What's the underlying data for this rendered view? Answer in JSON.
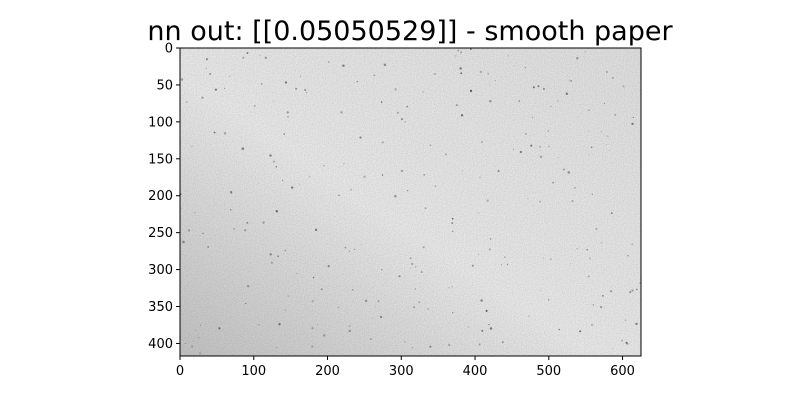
{
  "chart_data": {
    "type": "heatmap",
    "title": "nn out: [[0.05050529]] - smooth paper",
    "xlabel": "",
    "ylabel": "",
    "image_width": 625,
    "image_height": 417,
    "xlim": [
      0,
      625
    ],
    "ylim": [
      417,
      0
    ],
    "y_inverted": true,
    "colormap": "gray",
    "content": "grayscale texture of smooth paper, light gray with fine darker speckles, slightly darker toward the bottom-left",
    "x_ticks": [
      0,
      100,
      200,
      300,
      400,
      500,
      600
    ],
    "y_ticks": [
      0,
      50,
      100,
      150,
      200,
      250,
      300,
      350,
      400
    ],
    "grid": false,
    "legend": "none"
  }
}
